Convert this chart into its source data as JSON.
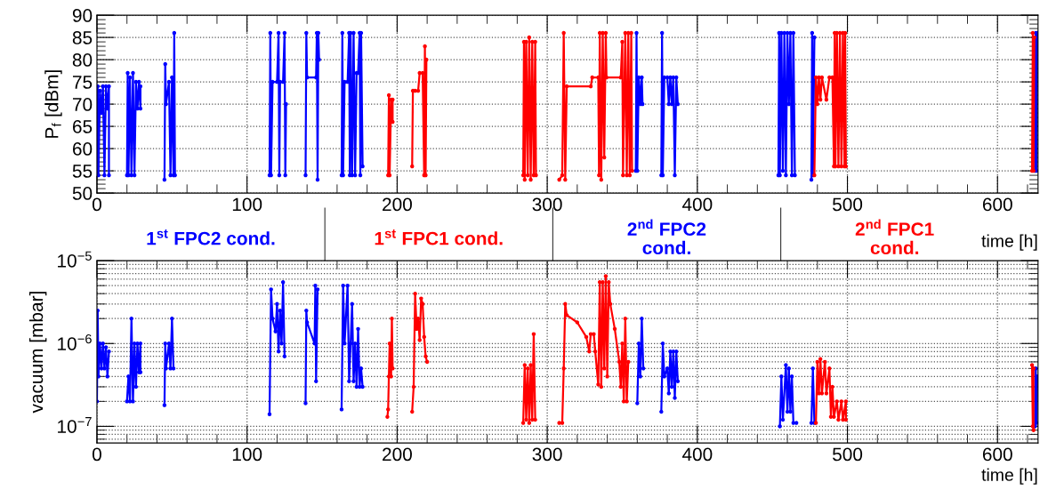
{
  "chart_data": [
    {
      "type": "line",
      "ylabel": "P$_{f}$ [dBm]",
      "xlabel": "time [h]",
      "xlim": [
        0,
        627
      ],
      "xticks": [
        0,
        100,
        200,
        300,
        400,
        500,
        600
      ],
      "ylim": [
        50,
        90
      ],
      "yticks": [
        50,
        55,
        60,
        65,
        70,
        75,
        80,
        85,
        90
      ],
      "grid": true,
      "marker": "circle",
      "line_style": "solid",
      "legend": false,
      "series": [
        {
          "color": "#0000ff",
          "x": [
            0,
            0.5,
            1,
            2,
            3,
            4,
            5,
            6,
            7,
            8,
            8,
            null,
            20,
            20.5,
            21,
            22,
            23,
            24,
            25,
            26,
            27,
            28,
            29,
            29,
            null,
            45,
            45.5,
            46,
            48,
            49,
            50,
            51,
            51.5,
            52,
            null,
            115,
            115.5,
            116,
            117,
            120,
            121,
            121.5,
            122,
            124,
            125,
            125.5,
            126,
            null,
            139,
            139.5,
            140,
            146,
            146.5,
            147,
            147.5,
            148,
            null,
            163,
            163.5,
            164,
            165,
            167,
            168,
            168.5,
            169,
            170,
            171,
            172,
            173,
            174,
            175,
            175.5,
            176,
            177,
            null,
            359,
            359.5,
            360,
            361,
            362,
            363,
            363.5,
            null,
            376,
            376.5,
            377,
            378,
            380,
            381,
            382,
            383,
            384,
            385,
            386,
            387,
            null,
            454,
            454.5,
            455,
            456,
            457,
            458,
            459,
            460,
            461,
            462,
            463,
            464,
            465,
            null,
            476,
            476.5,
            477,
            478,
            null,
            625,
            625.5,
            626,
            626.5
          ],
          "values": [
            54,
            74,
            54,
            73,
            68,
            74,
            54,
            74,
            69,
            74,
            54,
            null,
            54,
            77,
            54,
            76,
            54,
            77,
            54,
            75,
            69,
            75,
            69,
            74,
            null,
            53,
            79,
            70,
            75,
            54,
            76,
            54,
            86,
            54,
            null,
            54,
            86,
            54,
            75,
            75,
            86,
            54,
            75,
            75,
            86,
            54,
            70,
            null,
            54,
            86,
            76,
            76,
            86,
            53,
            86,
            80,
            null,
            54,
            86,
            54,
            75,
            75,
            86,
            54,
            86,
            54,
            86,
            54,
            77,
            77,
            86,
            54,
            86,
            56,
            null,
            55,
            86,
            55,
            76,
            70,
            76,
            70,
            null,
            54,
            86,
            54,
            76,
            76,
            70,
            76,
            70,
            76,
            54,
            76,
            70,
            null,
            54,
            86,
            54,
            86,
            55,
            86,
            54,
            86,
            70,
            86,
            54,
            86,
            54,
            null,
            53,
            86,
            54,
            85,
            null,
            55,
            86,
            55,
            86
          ]
        },
        {
          "color": "#ff0000",
          "x": [
            194,
            194.5,
            195,
            196,
            197,
            197,
            null,
            210,
            210.5,
            212,
            214,
            215,
            217,
            218,
            218.5,
            219,
            219.5,
            null,
            284,
            284.5,
            285,
            286,
            287,
            288,
            289,
            290,
            291,
            292,
            292.5,
            null,
            308,
            310,
            311,
            312,
            313,
            329,
            330,
            334,
            334.5,
            335,
            336,
            337,
            338,
            339,
            339.5,
            349,
            350,
            350.5,
            352,
            353,
            354,
            355,
            356,
            356.5,
            null,
            478,
            479,
            480,
            481,
            482,
            483,
            486,
            488,
            490,
            491,
            491.5,
            492,
            493,
            494,
            495,
            496,
            497,
            498,
            498.5,
            499,
            null,
            623,
            623.5,
            624,
            624.5
          ],
          "values": [
            54,
            72,
            54,
            71,
            66,
            71,
            null,
            56,
            73,
            73,
            73,
            77,
            77,
            54,
            83,
            54,
            80,
            null,
            54,
            84,
            53,
            84,
            54,
            85,
            53,
            84,
            54,
            84,
            54,
            null,
            53,
            54,
            86,
            53,
            74,
            74,
            76,
            76,
            54,
            86,
            53,
            86,
            58,
            86,
            76,
            76,
            84,
            54,
            86,
            54,
            86,
            54,
            86,
            55,
            null,
            54,
            76,
            70,
            76,
            71,
            76,
            71,
            76,
            76,
            56,
            86,
            56,
            86,
            56,
            86,
            56,
            86,
            56,
            86,
            56,
            null,
            55,
            86,
            55,
            85
          ]
        }
      ]
    },
    {
      "type": "other",
      "categories": [
        "1$^{st}$ FPC2 cond.",
        "1$^{st}$ FPC1 cond.",
        "2$^{nd}$ FPC2\ncond.",
        "2$^{nd}$ FPC1\ncond."
      ],
      "colors": [
        "#0000ff",
        "#ff0000",
        "#0000ff",
        "#ff0000"
      ]
    },
    {
      "type": "line",
      "ylabel": "vacuum [mbar]",
      "xlabel": "time [h]",
      "xlim": [
        0,
        627
      ],
      "xticks": [
        0,
        100,
        200,
        300,
        400,
        500,
        600
      ],
      "log": true,
      "ylim": [
        6.3e-08,
        1e-05
      ],
      "yticks": [
        {
          "value": 1e-07,
          "label": "10$^{−7}$"
        },
        {
          "value": 1e-06,
          "label": "10$^{−6}$"
        },
        {
          "value": 1e-05,
          "label": "10$^{−5}$"
        }
      ],
      "grid": true,
      "marker": "circle",
      "line_style": "solid",
      "legend": false,
      "series": [
        {
          "color": "#0000ff",
          "x": [
            0,
            0.5,
            1,
            2,
            3,
            4,
            5,
            6,
            7,
            8,
            null,
            20,
            21,
            22,
            23,
            24,
            25,
            26,
            27,
            28,
            29,
            29,
            null,
            45,
            45.5,
            46,
            48,
            49,
            50,
            51,
            null,
            115,
            116,
            117,
            119,
            120,
            121,
            122,
            123,
            124,
            125,
            null,
            139,
            139.5,
            140,
            145,
            145.5,
            146,
            147,
            null,
            163,
            164,
            165,
            167,
            168,
            169,
            170,
            171,
            172,
            173,
            174,
            175,
            176,
            177,
            null,
            360,
            361,
            362,
            363,
            364,
            null,
            376,
            377,
            378,
            380,
            381,
            382,
            383,
            384,
            385,
            386,
            387,
            null,
            455,
            456,
            457,
            459,
            460,
            461,
            462,
            463,
            464,
            466,
            null,
            476,
            477,
            478,
            null,
            625,
            625.5,
            626,
            626.5
          ],
          "values": [
            2e-07,
            2.5e-06,
            4e-07,
            1e-06,
            5e-07,
            1e-06,
            5e-07,
            9e-07,
            4e-07,
            8e-07,
            null,
            2e-07,
            4e-07,
            2e-07,
            2e-06,
            2e-07,
            1e-06,
            3e-07,
            1e-06,
            4.5e-07,
            1e-06,
            4.5e-07,
            null,
            1.8e-07,
            1e-06,
            5e-07,
            1e-06,
            5e-07,
            2e-06,
            5e-07,
            null,
            1.4e-07,
            4.5e-06,
            2e-06,
            1.4e-06,
            3e-06,
            8e-07,
            2.5e-06,
            1e-06,
            5.5e-06,
            7e-07,
            null,
            1.9e-07,
            2.5e-06,
            1.8e-06,
            1e-06,
            5e-06,
            3.5e-07,
            4.5e-06,
            null,
            1.6e-07,
            5e-06,
            1e-06,
            5e-06,
            3.5e-07,
            1e-06,
            3e-06,
            3.5e-07,
            1e-06,
            3e-07,
            1.5e-06,
            3e-07,
            5e-07,
            3e-07,
            null,
            1.9e-07,
            1e-06,
            4e-07,
            2e-06,
            5e-07,
            null,
            1.5e-07,
            1e-06,
            4e-07,
            5e-07,
            2.5e-07,
            8e-07,
            3e-07,
            8e-07,
            2.2e-07,
            8e-07,
            3.5e-07,
            null,
            1e-07,
            4e-07,
            1.2e-07,
            5.5e-07,
            1.5e-07,
            5e-07,
            1.5e-07,
            4e-07,
            1.1e-07,
            1.1e-07,
            null,
            1.1e-07,
            5e-07,
            1.1e-07,
            null,
            1e-07,
            5e-07,
            1.1e-07,
            4e-07
          ]
        },
        {
          "color": "#ff0000",
          "x": [
            193.5,
            194,
            194.5,
            195,
            196,
            196.5,
            197,
            null,
            210,
            211,
            212,
            213,
            214,
            215,
            216,
            217,
            218,
            219,
            220,
            null,
            284,
            285,
            286,
            287,
            288,
            289,
            290,
            291,
            292,
            null,
            308,
            310,
            311,
            312,
            313,
            320,
            326,
            328,
            329,
            331,
            332,
            334,
            335,
            336,
            337,
            338,
            339,
            340,
            341,
            342,
            345,
            348,
            349,
            350,
            351,
            352,
            353,
            354,
            null,
            479,
            480,
            481,
            482,
            483,
            485,
            486,
            488,
            489,
            490,
            491,
            493,
            494,
            496,
            497,
            499,
            499,
            null,
            623,
            623.5,
            624,
            624
          ],
          "values": [
            1.3e-07,
            1.6e-07,
            4e-07,
            1e-06,
            4e-07,
            2e-06,
            5e-07,
            null,
            1.5e-07,
            3e-07,
            4e-06,
            1.5e-06,
            2e-06,
            1.1e-06,
            3.5e-06,
            3e-06,
            1.2e-06,
            7e-07,
            6e-07,
            null,
            1.1e-07,
            5.5e-07,
            1.2e-07,
            5e-07,
            1.1e-07,
            5.5e-07,
            1.2e-07,
            1.3e-06,
            1.2e-07,
            null,
            1.1e-07,
            1.1e-07,
            5e-07,
            3e-06,
            2.2e-06,
            1.8e-06,
            1.2e-06,
            8e-07,
            1.3e-06,
            1.3e-06,
            8e-07,
            3.2e-07,
            5.5e-06,
            3e-07,
            5.5e-06,
            5e-07,
            6.5e-06,
            4e-07,
            5.5e-06,
            3e-06,
            1.5e-06,
            6e-07,
            3e-07,
            1e-06,
            2e-07,
            2e-06,
            2e-07,
            6e-07,
            null,
            1.1e-07,
            6e-07,
            2.5e-07,
            6.5e-07,
            2.5e-07,
            6e-07,
            2.5e-07,
            5e-07,
            1.3e-07,
            3e-07,
            1.3e-07,
            2e-07,
            1.2e-07,
            2e-07,
            1.2e-07,
            2e-07,
            1.2e-07,
            null,
            5.5e-07,
            1e-07,
            5e-07,
            9e-08
          ]
        }
      ]
    }
  ]
}
